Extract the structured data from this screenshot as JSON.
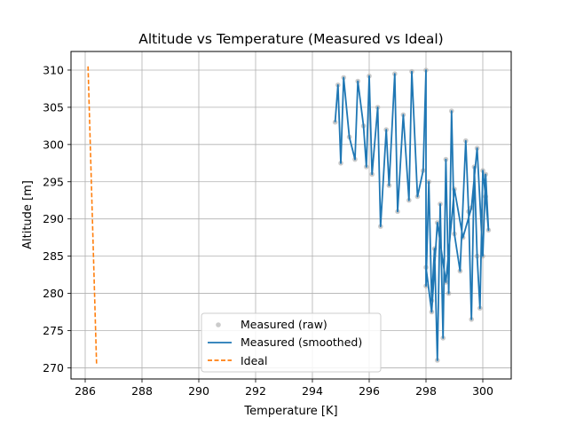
{
  "chart_data": {
    "type": "line",
    "title": "Altitude vs Temperature (Measured vs Ideal)",
    "xlabel": "Temperature [K]",
    "ylabel": "Altitude [m]",
    "xlim": [
      285.5,
      301.0
    ],
    "ylim": [
      268.5,
      312.5
    ],
    "xticks": [
      286,
      288,
      290,
      292,
      294,
      296,
      298,
      300
    ],
    "yticks": [
      270,
      275,
      280,
      285,
      290,
      295,
      300,
      305,
      310
    ],
    "grid": true,
    "legend": {
      "placement": "lower-center"
    },
    "series": [
      {
        "name": "Measured (raw)",
        "style": "scatter",
        "color": "#a8a8a8",
        "x": [
          294.8,
          294.9,
          295.0,
          295.1,
          295.3,
          295.5,
          295.6,
          295.8,
          295.9,
          296.0,
          296.1,
          296.3,
          296.4,
          296.6,
          296.7,
          296.9,
          297.0,
          297.2,
          297.4,
          297.5,
          297.7,
          297.9,
          298.0,
          298.0,
          298.1,
          298.2,
          298.3,
          298.4,
          298.5,
          298.6,
          298.7,
          298.8,
          298.9,
          299.0,
          299.2,
          299.4,
          299.5,
          299.6,
          299.7,
          299.8,
          299.9,
          300.0,
          300.1,
          300.2,
          300.1,
          300.0,
          299.8,
          299.6,
          299.3,
          299.0,
          298.7,
          298.4,
          298.2,
          298.0
        ],
        "y": [
          303.0,
          308.0,
          297.5,
          309.0,
          301.0,
          298.0,
          308.5,
          302.5,
          297.0,
          309.2,
          296.0,
          305.0,
          289.0,
          302.0,
          294.5,
          309.5,
          291.0,
          304.0,
          292.5,
          309.8,
          293.0,
          296.5,
          310.0,
          281.0,
          295.0,
          279.0,
          286.0,
          271.0,
          292.0,
          274.0,
          298.0,
          280.0,
          304.5,
          288.0,
          283.0,
          300.5,
          291.0,
          276.5,
          297.0,
          285.0,
          278.0,
          296.5,
          293.0,
          288.5,
          296.0,
          285.0,
          299.5,
          291.5,
          287.5,
          294.0,
          281.5,
          289.5,
          277.5,
          283.5
        ]
      },
      {
        "name": "Measured (smoothed)",
        "style": "line",
        "color": "#1f77b4",
        "x": [
          294.8,
          294.9,
          295.0,
          295.1,
          295.3,
          295.5,
          295.6,
          295.8,
          295.9,
          296.0,
          296.1,
          296.3,
          296.4,
          296.6,
          296.7,
          296.9,
          297.0,
          297.2,
          297.4,
          297.5,
          297.7,
          297.9,
          298.0,
          298.0,
          298.1,
          298.2,
          298.3,
          298.4,
          298.5,
          298.6,
          298.7,
          298.8,
          298.9,
          299.0,
          299.2,
          299.4,
          299.5,
          299.6,
          299.7,
          299.8,
          299.9,
          300.0,
          300.1,
          300.2,
          300.1,
          300.0,
          299.8,
          299.6,
          299.3,
          299.0,
          298.7,
          298.4,
          298.2,
          298.0
        ],
        "y": [
          303.0,
          308.0,
          297.5,
          309.0,
          301.0,
          298.0,
          308.5,
          302.5,
          297.0,
          309.2,
          296.0,
          305.0,
          289.0,
          302.0,
          294.5,
          309.5,
          291.0,
          304.0,
          292.5,
          309.8,
          293.0,
          296.5,
          310.0,
          281.0,
          295.0,
          279.0,
          286.0,
          271.0,
          292.0,
          274.0,
          298.0,
          280.0,
          304.5,
          288.0,
          283.0,
          300.5,
          291.0,
          276.5,
          297.0,
          285.0,
          278.0,
          296.5,
          293.0,
          288.5,
          296.0,
          285.0,
          299.5,
          291.5,
          287.5,
          294.0,
          281.5,
          289.5,
          277.5,
          283.5
        ]
      },
      {
        "name": "Ideal",
        "style": "dashed",
        "color": "#ff7f0e",
        "x": [
          286.1,
          286.4
        ],
        "y": [
          310.5,
          270.5
        ]
      }
    ]
  }
}
